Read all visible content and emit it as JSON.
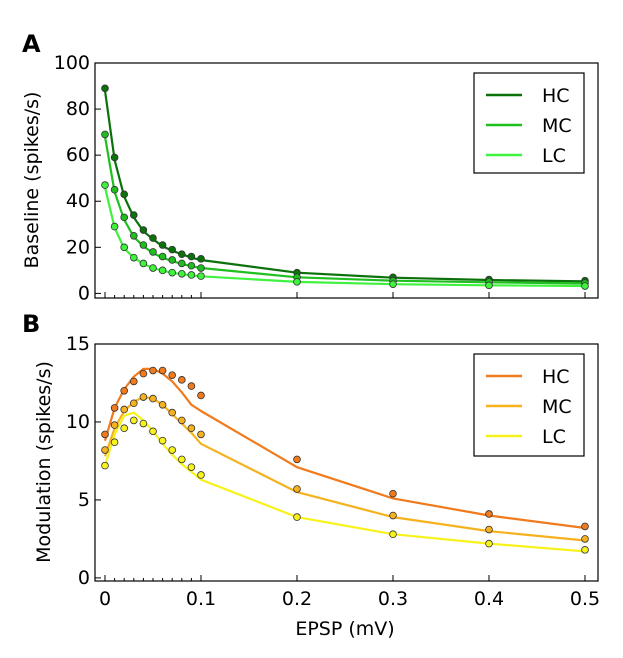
{
  "figure_labels": {
    "panel_a": "A",
    "panel_b": "B"
  },
  "chart_data": [
    {
      "type": "line",
      "panel": "A",
      "title": "",
      "xlabel": "",
      "ylabel": "Baseline (spikes/s)",
      "xlim": [
        -0.01,
        0.505
      ],
      "ylim": [
        -2,
        100
      ],
      "yticks": [
        0,
        20,
        40,
        60,
        80,
        100
      ],
      "ytick_labels": [
        "0",
        "20",
        "40",
        "60",
        "80",
        "100"
      ],
      "legend_position": "top-right",
      "series": [
        {
          "name": "HC",
          "color": "#0b720b",
          "points_x": [
            0,
            0.01,
            0.02,
            0.03,
            0.04,
            0.05,
            0.06,
            0.07,
            0.08,
            0.09,
            0.1,
            0.2,
            0.3,
            0.4,
            0.5
          ],
          "points_y": [
            89,
            59,
            43,
            34,
            27.5,
            24,
            21,
            19,
            17,
            16,
            15,
            9,
            7,
            6,
            5.5
          ],
          "line_x": [
            0,
            0.01,
            0.02,
            0.03,
            0.04,
            0.05,
            0.06,
            0.07,
            0.08,
            0.09,
            0.1,
            0.2,
            0.3,
            0.4,
            0.5
          ],
          "line_y": [
            88,
            58,
            42,
            33,
            27,
            23.5,
            20.5,
            18.5,
            17,
            15.5,
            14.5,
            9,
            6.8,
            5.8,
            5.2
          ]
        },
        {
          "name": "MC",
          "color": "#1fbf1f",
          "points_x": [
            0,
            0.01,
            0.02,
            0.03,
            0.04,
            0.05,
            0.06,
            0.07,
            0.08,
            0.09,
            0.1,
            0.2,
            0.3,
            0.4,
            0.5
          ],
          "points_y": [
            69,
            45,
            33,
            25,
            21,
            18,
            16,
            14.5,
            13,
            12,
            11,
            7,
            5.5,
            5,
            4.5
          ],
          "line_x": [
            0,
            0.01,
            0.02,
            0.03,
            0.04,
            0.05,
            0.06,
            0.07,
            0.08,
            0.09,
            0.1,
            0.2,
            0.3,
            0.4,
            0.5
          ],
          "line_y": [
            68,
            44,
            32,
            24.5,
            20.5,
            17.5,
            15.5,
            14,
            12.8,
            11.8,
            11,
            7,
            5.5,
            4.8,
            4.3
          ]
        },
        {
          "name": "LC",
          "color": "#3ef23e",
          "points_x": [
            0,
            0.01,
            0.02,
            0.03,
            0.04,
            0.05,
            0.06,
            0.07,
            0.08,
            0.09,
            0.1,
            0.2,
            0.3,
            0.4,
            0.5
          ],
          "points_y": [
            47,
            29,
            20,
            15.5,
            13,
            11,
            10,
            9,
            8.5,
            8,
            7.5,
            5,
            4,
            3.5,
            3.2
          ],
          "line_x": [
            0,
            0.01,
            0.02,
            0.03,
            0.04,
            0.05,
            0.06,
            0.07,
            0.08,
            0.09,
            0.1,
            0.2,
            0.3,
            0.4,
            0.5
          ],
          "line_y": [
            46,
            28.5,
            19.5,
            15.5,
            12.8,
            11,
            9.8,
            9,
            8.3,
            7.8,
            7.4,
            5,
            4,
            3.5,
            3.2
          ]
        }
      ]
    },
    {
      "type": "line",
      "panel": "B",
      "title": "",
      "xlabel": "EPSP (mV)",
      "ylabel": "Modulation (spikes/s)",
      "xlim": [
        -0.01,
        0.505
      ],
      "ylim": [
        -0.2,
        15
      ],
      "xticks": [
        0,
        0.1,
        0.2,
        0.3,
        0.4,
        0.5
      ],
      "xtick_labels": [
        "0",
        "0.1",
        "0.2",
        "0.3",
        "0.4",
        "0.5"
      ],
      "yticks": [
        0,
        5,
        10,
        15
      ],
      "ytick_labels": [
        "0",
        "5",
        "10",
        "15"
      ],
      "legend_position": "top-right",
      "series": [
        {
          "name": "HC",
          "color": "#f07a1c",
          "points_x": [
            0,
            0.01,
            0.02,
            0.03,
            0.04,
            0.05,
            0.06,
            0.07,
            0.08,
            0.09,
            0.1,
            0.2,
            0.3,
            0.4,
            0.5
          ],
          "points_y": [
            9.2,
            10.9,
            12,
            12.6,
            13.1,
            13.3,
            13.3,
            13,
            12.7,
            12.3,
            11.7,
            7.6,
            5.4,
            4.1,
            3.3
          ],
          "line_x": [
            0,
            0.01,
            0.02,
            0.03,
            0.04,
            0.05,
            0.06,
            0.07,
            0.08,
            0.09,
            0.1,
            0.2,
            0.3,
            0.4,
            0.5
          ],
          "line_y": [
            8.8,
            10.9,
            12.1,
            12.9,
            13.4,
            13.4,
            13.1,
            12.6,
            11.9,
            11.1,
            10.7,
            7.1,
            5.1,
            4,
            3.2
          ]
        },
        {
          "name": "MC",
          "color": "#f5b21e",
          "points_x": [
            0,
            0.01,
            0.02,
            0.03,
            0.04,
            0.05,
            0.06,
            0.07,
            0.08,
            0.09,
            0.1,
            0.2,
            0.3,
            0.4,
            0.5
          ],
          "points_y": [
            8.2,
            9.8,
            10.8,
            11.2,
            11.6,
            11.5,
            11.1,
            10.6,
            10.1,
            9.6,
            9.2,
            5.7,
            4,
            3.1,
            2.5
          ],
          "line_x": [
            0,
            0.01,
            0.02,
            0.03,
            0.04,
            0.05,
            0.06,
            0.07,
            0.08,
            0.09,
            0.1,
            0.2,
            0.3,
            0.4,
            0.5
          ],
          "line_y": [
            7.8,
            9.6,
            10.7,
            11.3,
            11.6,
            11.5,
            11.1,
            10.5,
            9.9,
            9.3,
            8.6,
            5.5,
            3.9,
            3,
            2.4
          ]
        },
        {
          "name": "LC",
          "color": "#f8f21c",
          "points_x": [
            0,
            0.01,
            0.02,
            0.03,
            0.04,
            0.05,
            0.06,
            0.07,
            0.08,
            0.09,
            0.1,
            0.2,
            0.3,
            0.4,
            0.5
          ],
          "points_y": [
            7.2,
            8.7,
            9.6,
            10.1,
            9.9,
            9.4,
            8.8,
            8.2,
            7.6,
            7.1,
            6.6,
            3.9,
            2.8,
            2.2,
            1.8
          ],
          "line_x": [
            0,
            0.01,
            0.02,
            0.03,
            0.04,
            0.05,
            0.06,
            0.07,
            0.08,
            0.09,
            0.1,
            0.2,
            0.3,
            0.4,
            0.5
          ],
          "line_y": [
            7.2,
            9.2,
            10.4,
            10.6,
            10.1,
            9.4,
            8.6,
            7.9,
            7.3,
            6.8,
            6.3,
            3.9,
            2.8,
            2.2,
            1.7
          ]
        }
      ]
    }
  ]
}
